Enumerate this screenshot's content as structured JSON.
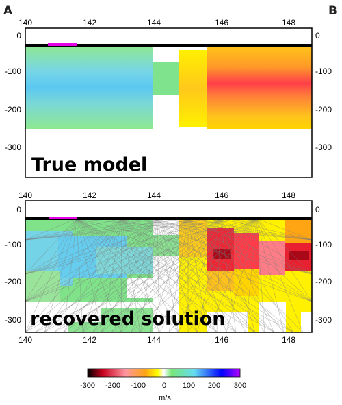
{
  "corner_labels": {
    "left": "A",
    "right": "B"
  },
  "x_ticks": [
    "140",
    "142",
    "144",
    "146",
    "148"
  ],
  "depth_ticks": [
    "0",
    "-100",
    "-200",
    "-300"
  ],
  "panels": {
    "top": {
      "label": "True model"
    },
    "bottom": {
      "label": "recovered solution"
    }
  },
  "colorbar": {
    "ticks": [
      "-300",
      "-200",
      "-100",
      "0",
      "100",
      "200",
      "300"
    ],
    "unit": "m/s",
    "colors": [
      "#000000",
      "#c8001e",
      "#ff96a0",
      "#ffa514",
      "#ffff00",
      "#ffffff",
      "#78e678",
      "#64dcf0",
      "#0000ff",
      "#b400ff"
    ]
  },
  "colors": {
    "slow_anomaly": "#e8323c",
    "intermediate": "#ffa514",
    "near_zero_positive": "#78e678",
    "fast_anomaly": "#64d2f0",
    "surface_marker": "#e600e6",
    "ray_paths": "#888888"
  }
}
